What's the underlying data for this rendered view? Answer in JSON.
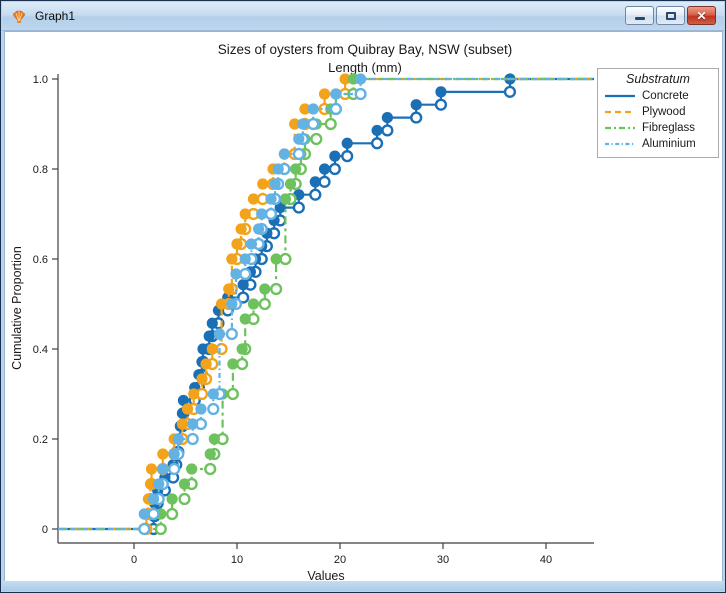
{
  "window": {
    "title": "Graph1",
    "controls": {
      "minimize": "minimize",
      "maximize": "maximize",
      "close": "close"
    }
  },
  "chart_data": {
    "type": "line",
    "subtype": "ecdf-step-with-markers",
    "title": "Sizes of oysters from Quibray Bay, NSW (subset)",
    "subtitle": "Length (mm)",
    "xlabel": "Values",
    "ylabel": "Cumulative Proportion",
    "xlim": [
      -7.4,
      44.7
    ],
    "ylim": [
      0,
      1
    ],
    "xtick_values": [
      0,
      10,
      20,
      30,
      40
    ],
    "xtick_labels": [
      "0",
      "10",
      "20",
      "30",
      "40"
    ],
    "ytick_values": [
      0,
      0.2,
      0.4,
      0.6,
      0.8,
      1.0
    ],
    "ytick_labels": [
      "0",
      "0.2",
      "0.4",
      "0.6",
      "0.8",
      "1.0"
    ],
    "grid": false,
    "legend": {
      "title": "Substratum",
      "position": "top-right"
    },
    "axis_color": "#3f3f3f",
    "text_color": "#1a1a1a",
    "series": [
      {
        "name": "Concrete",
        "color": "#1b6fb5",
        "dash": "solid",
        "values": [
          1.9,
          2.0,
          2.3,
          3.0,
          3.8,
          4.1,
          4.3,
          4.5,
          4.7,
          4.8,
          5.9,
          6.3,
          6.6,
          6.7,
          7.3,
          7.6,
          8.2,
          9.1,
          10.6,
          11.3,
          11.8,
          12.4,
          12.9,
          13.6,
          14.2,
          16.0,
          17.6,
          18.5,
          19.5,
          20.7,
          23.6,
          24.6,
          27.4,
          29.8,
          36.5
        ]
      },
      {
        "name": "Plywood",
        "color": "#f2a31b",
        "dash": "dashed",
        "values": [
          1.2,
          1.4,
          1.6,
          1.7,
          2.8,
          3.9,
          4.7,
          5.2,
          5.8,
          6.6,
          7.0,
          7.6,
          8.5,
          8.5,
          8.5,
          9.2,
          9.5,
          9.5,
          10.0,
          10.4,
          10.8,
          11.6,
          12.5,
          13.5,
          14.6,
          15.6,
          15.6,
          16.6,
          18.5,
          20.5
        ]
      },
      {
        "name": "Fibreglass",
        "color": "#6dc25e",
        "dash": "dash-dot",
        "values": [
          2.6,
          3.7,
          4.9,
          5.6,
          7.4,
          7.8,
          8.6,
          8.6,
          8.6,
          9.6,
          9.6,
          10.5,
          10.8,
          10.8,
          11.6,
          12.7,
          13.8,
          13.8,
          14.7,
          14.7,
          14.7,
          14.7,
          15.2,
          15.7,
          16.2,
          16.6,
          17.7,
          19.1,
          19.6,
          21.3
        ]
      },
      {
        "name": "Aluminium",
        "color": "#62b2e4",
        "dash": "dash-dot-dot",
        "values": [
          1.0,
          1.9,
          2.4,
          2.8,
          3.9,
          4.3,
          5.7,
          6.5,
          7.7,
          8.3,
          8.3,
          8.3,
          8.3,
          9.5,
          9.5,
          9.9,
          9.9,
          10.8,
          11.4,
          12.1,
          12.4,
          13.3,
          13.7,
          14.0,
          14.6,
          16.0,
          16.4,
          17.4,
          19.6,
          22.0
        ]
      }
    ]
  }
}
